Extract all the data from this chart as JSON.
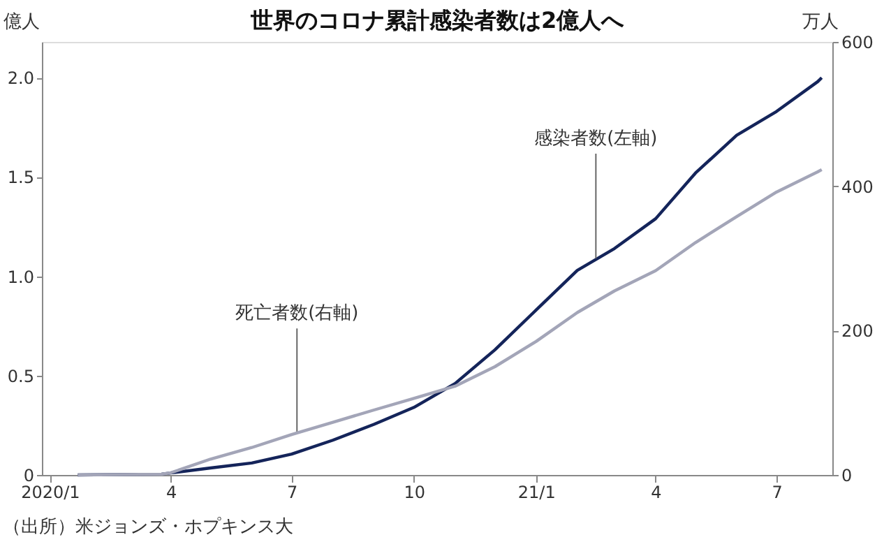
{
  "chart_data": {
    "type": "line",
    "title": "世界のコロナ累計感染者数は2億人へ",
    "ylabel": "億人",
    "y2label": "万人",
    "xlim": [
      "2019-12-26",
      "2021-08-12"
    ],
    "xticks": [
      {
        "value": "2020-01-01",
        "label": "2020/1"
      },
      {
        "value": "2020-04-01",
        "label": "4"
      },
      {
        "value": "2020-07-01",
        "label": "7"
      },
      {
        "value": "2020-10-01",
        "label": "10"
      },
      {
        "value": "2021-01-01",
        "label": "21/1"
      },
      {
        "value": "2021-04-01",
        "label": "4"
      },
      {
        "value": "2021-07-01",
        "label": "7"
      }
    ],
    "ylim": [
      0,
      2.18
    ],
    "yticks": [
      0,
      0.5,
      {
        "value": 1,
        "label": "1.0"
      },
      1.5,
      {
        "value": 2,
        "label": "2.0"
      }
    ],
    "y2lim": [
      0,
      600
    ],
    "y2ticks": [
      0,
      200,
      400,
      600
    ],
    "series": [
      {
        "color": "#14245a",
        "x": [
          "2020-01-22",
          "2020-03-25",
          "2020-04-01",
          "2020-05-01",
          "2020-06-01",
          "2020-07-01",
          "2020-08-01",
          "2020-09-01",
          "2020-10-01",
          "2020-11-01",
          "2020-12-01",
          "2021-01-01",
          "2021-02-01",
          "2021-03-01",
          "2021-04-01",
          "2021-05-01",
          "2021-06-01",
          "2021-07-01",
          "2021-08-01",
          "2021-08-04"
        ],
        "values": [
          0,
          0.004,
          0.01,
          0.035,
          0.06,
          0.105,
          0.175,
          0.255,
          0.34,
          0.46,
          0.63,
          0.83,
          1.03,
          1.14,
          1.29,
          1.52,
          1.71,
          1.83,
          1.98,
          2.0
        ]
      },
      {
        "color": "#a3a5b8",
        "axis": "y2",
        "x": [
          "2020-01-22",
          "2020-03-25",
          "2020-04-01",
          "2020-05-01",
          "2020-06-01",
          "2020-07-01",
          "2020-08-01",
          "2020-09-01",
          "2020-10-01",
          "2020-11-01",
          "2020-12-01",
          "2021-01-01",
          "2021-02-01",
          "2021-03-01",
          "2021-04-01",
          "2021-05-01",
          "2021-06-01",
          "2021-07-01",
          "2021-08-01",
          "2021-08-04"
        ],
        "values": [
          0,
          1,
          3,
          22,
          38,
          56,
          73,
          90,
          106,
          123,
          150,
          185,
          225,
          255,
          283,
          322,
          358,
          392,
          420,
          423
        ]
      }
    ],
    "annotations": [
      {
        "text": "死亡者数(右軸)",
        "x": "2020-07-05",
        "y": 0.21
      },
      {
        "text": "感染者数(左軸)",
        "x": "2021-02-15",
        "y": 1.09
      },
      "（出所）米ジョンズ・ホプキンス大"
    ],
    "grid": false
  }
}
